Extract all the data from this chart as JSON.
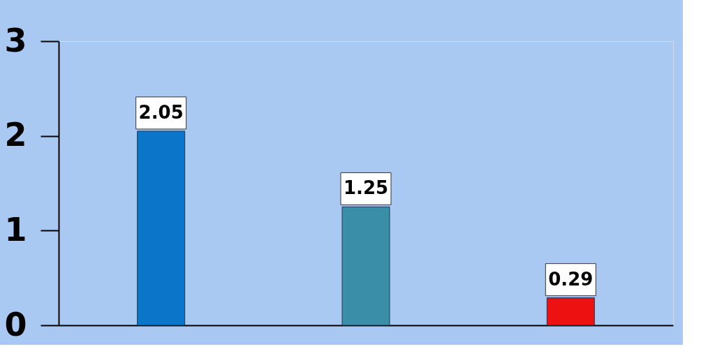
{
  "chart_data": {
    "type": "bar",
    "categories": [
      null,
      null,
      null
    ],
    "values": [
      2.05,
      1.25,
      0.29
    ],
    "colors": [
      "#0a75c9",
      "#3a8ea8",
      "#ee1111"
    ],
    "ylim": [
      0,
      3
    ],
    "yticks": [
      0,
      1,
      2,
      3
    ],
    "data_labels": true,
    "grid": false
  }
}
